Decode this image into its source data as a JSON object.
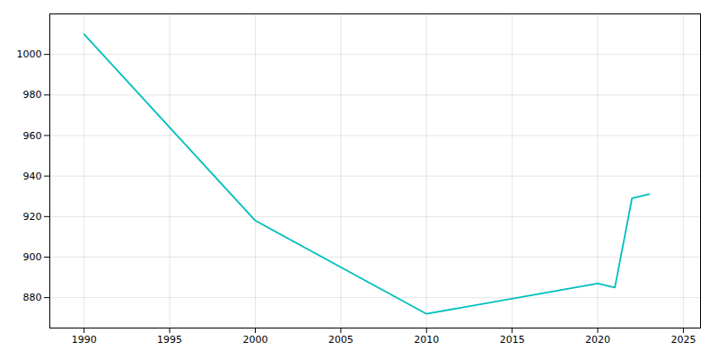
{
  "chart_data": {
    "type": "line",
    "x": [
      1990,
      2000,
      2010,
      2020,
      2021,
      2022,
      2023
    ],
    "values": [
      1010,
      918,
      872,
      887,
      885,
      929,
      931
    ],
    "color": "#00BFBF",
    "xlim": [
      1988,
      2026
    ],
    "ylim": [
      865,
      1020
    ],
    "xticks": [
      1990,
      1995,
      2000,
      2005,
      2010,
      2015,
      2020,
      2025
    ],
    "yticks": [
      880,
      900,
      920,
      940,
      960,
      980,
      1000
    ],
    "grid": true
  }
}
